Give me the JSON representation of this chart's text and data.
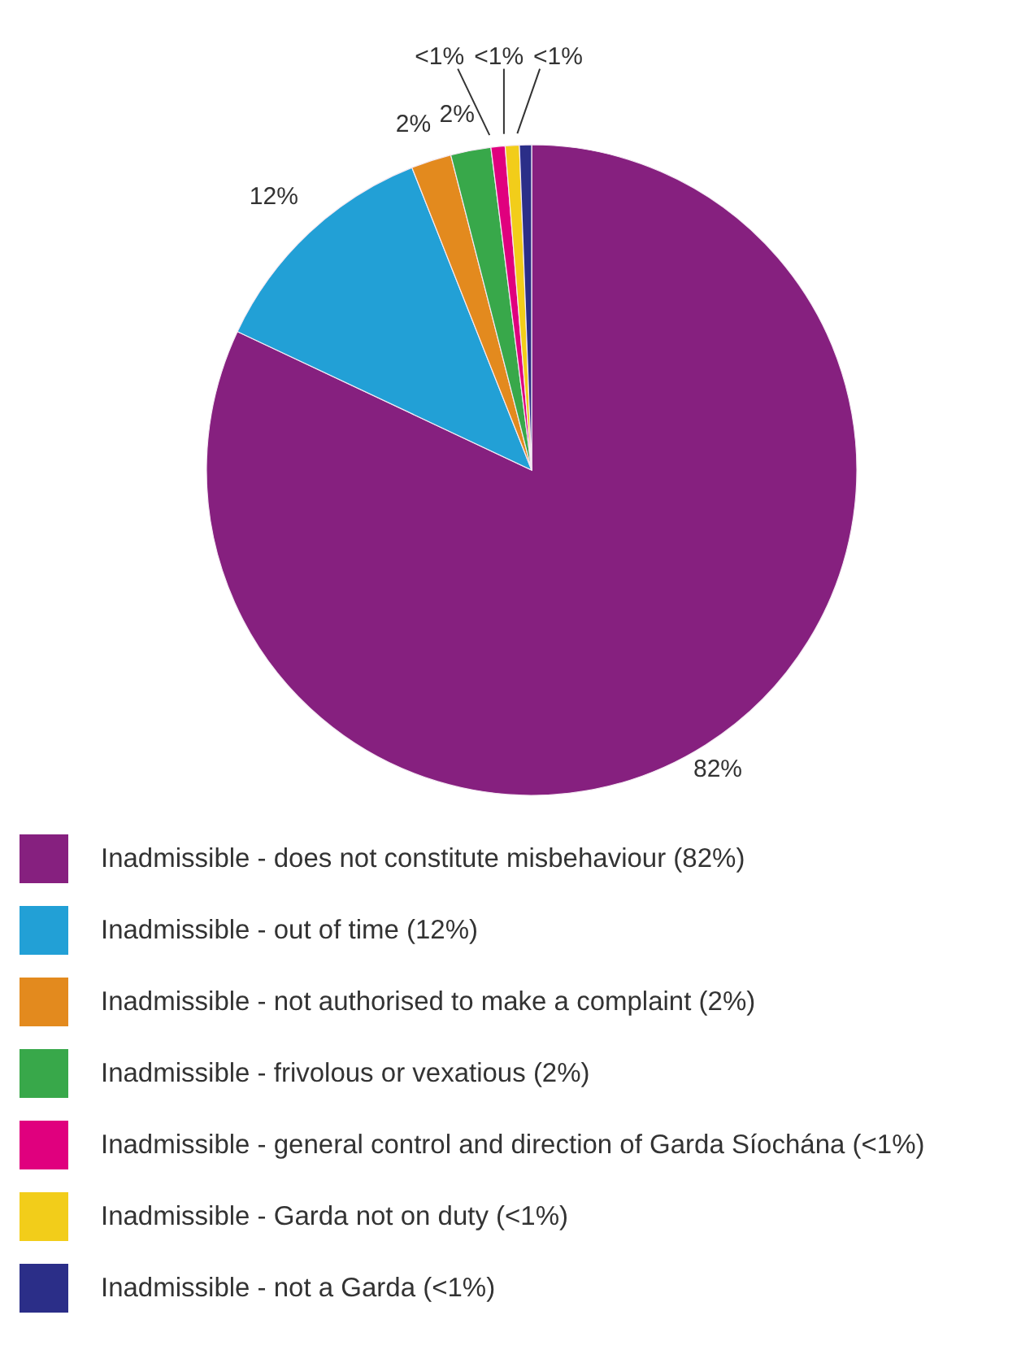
{
  "chart_data": {
    "type": "pie",
    "categories": [
      "Inadmissible - does not constitute misbehaviour (82%)",
      "Inadmissible - out of time (12%)",
      "Inadmissible - not authorised to make a complaint (2%)",
      "Inadmissible - frivolous or vexatious (2%)",
      "Inadmissible - general control and direction of Garda Síochána (<1%)",
      "Inadmissible - Garda not on duty (<1%)",
      "Inadmissible - not a Garda (<1%)"
    ],
    "values": [
      82,
      12,
      2,
      2,
      0.7,
      0.7,
      0.6
    ],
    "colors": [
      "#86207f",
      "#22a0d6",
      "#e38a1e",
      "#38a84a",
      "#e0007e",
      "#f2cd1a",
      "#2b2e88"
    ],
    "value_labels": [
      "82%",
      "12%",
      "2%",
      "2%",
      "<1%",
      "<1%",
      "<1%"
    ],
    "legend": "bottom"
  }
}
